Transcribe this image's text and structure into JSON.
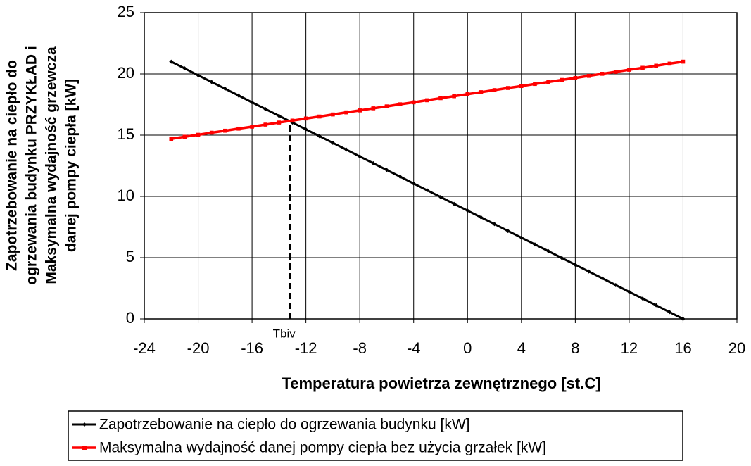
{
  "chart_data": {
    "type": "line",
    "ylabel": [
      "Zapotrzebowanie na ciepło do",
      "ogrzewania budynku PRZYKŁAD i",
      "Maksymalna wydajność grzewcza",
      "danej pompy ciepła [kW]"
    ],
    "xlabel": "Temperatura powietrza zewnętrznego [st.C]",
    "x": [
      -22,
      -21,
      -20,
      -19,
      -18,
      -17,
      -16,
      -15,
      -14,
      -13,
      -12,
      -11,
      -10,
      -9,
      -8,
      -7,
      -6,
      -5,
      -4,
      -3,
      -2,
      -1,
      0,
      1,
      2,
      3,
      4,
      5,
      6,
      7,
      8,
      9,
      10,
      11,
      12,
      13,
      14,
      15,
      16
    ],
    "series": [
      {
        "name": "Zapotrzebowanie na ciepło do ogrzewania budynku [kW]",
        "color": "#000000",
        "marker": "diamond",
        "values": [
          21,
          20.45,
          19.89,
          19.34,
          18.79,
          18.24,
          17.68,
          17.13,
          16.58,
          16.03,
          15.47,
          14.92,
          14.37,
          13.82,
          13.26,
          12.71,
          12.16,
          11.61,
          11.05,
          10.5,
          9.95,
          9.39,
          8.84,
          8.29,
          7.74,
          7.18,
          6.63,
          6.08,
          5.53,
          4.97,
          4.42,
          3.87,
          3.32,
          2.76,
          2.21,
          1.66,
          1.11,
          0.55,
          0
        ]
      },
      {
        "name": "Maksymalna wydajność danej pompy ciepła bez użycia grzałek [kW]",
        "color": "#ff0000",
        "marker": "square",
        "values": [
          14.7,
          14.87,
          15.03,
          15.2,
          15.36,
          15.53,
          15.69,
          15.86,
          16.03,
          16.19,
          16.36,
          16.52,
          16.69,
          16.86,
          17.02,
          17.19,
          17.35,
          17.52,
          17.68,
          17.85,
          18.02,
          18.18,
          18.35,
          18.51,
          18.68,
          18.85,
          19.01,
          19.18,
          19.34,
          19.51,
          19.67,
          19.84,
          20.01,
          20.17,
          20.34,
          20.5,
          20.67,
          20.84,
          21.0
        ]
      }
    ],
    "annotation": {
      "label": "Tbiv",
      "x": -13.2,
      "y": 16.15
    },
    "xlim": [
      -24,
      20
    ],
    "xticks": [
      -24,
      -20,
      -16,
      -12,
      -8,
      -4,
      0,
      4,
      8,
      12,
      16,
      20
    ],
    "ylim": [
      0,
      25
    ],
    "yticks": [
      0,
      5,
      10,
      15,
      20,
      25
    ],
    "grid": true,
    "legend": "bottom"
  }
}
